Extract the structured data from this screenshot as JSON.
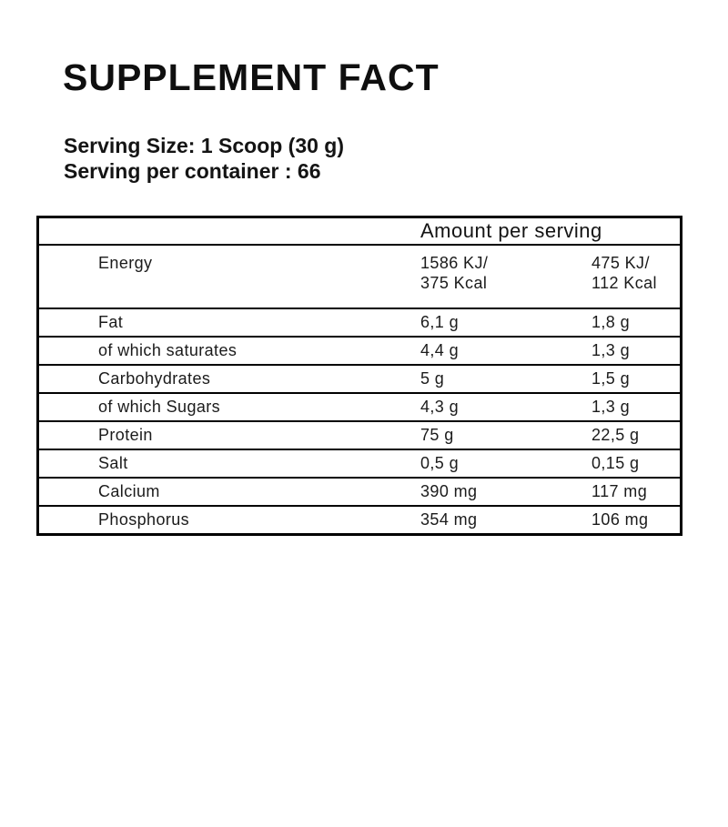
{
  "title": "SUPPLEMENT FACT",
  "serving": {
    "size": "Serving Size: 1 Scoop (30 g)",
    "per_container": "Serving per container : 66"
  },
  "table": {
    "header": "Amount per serving",
    "energy_row": {
      "label": "Energy",
      "col1_line1": "1586 KJ/",
      "col1_line2": "375 Kcal",
      "col2_line1": "475 KJ/",
      "col2_line2": "112 Kcal"
    },
    "rows": [
      {
        "label": "Fat",
        "col1": "6,1 g",
        "col2": "1,8 g"
      },
      {
        "label": "of which saturates",
        "col1": "4,4 g",
        "col2": "1,3 g"
      },
      {
        "label": "Carbohydrates",
        "col1": "5 g",
        "col2": "1,5 g"
      },
      {
        "label": "of which Sugars",
        "col1": "4,3 g",
        "col2": "1,3 g"
      },
      {
        "label": "Protein",
        "col1": "75 g",
        "col2": "22,5 g"
      },
      {
        "label": "Salt",
        "col1": "0,5 g",
        "col2": "0,15 g"
      },
      {
        "label": "Calcium",
        "col1": "390 mg",
        "col2": "117 mg"
      },
      {
        "label": "Phosphorus",
        "col1": "354 mg",
        "col2": "106 mg"
      }
    ]
  },
  "colors": {
    "background": "#ffffff",
    "text": "#161616",
    "border": "#000000"
  }
}
